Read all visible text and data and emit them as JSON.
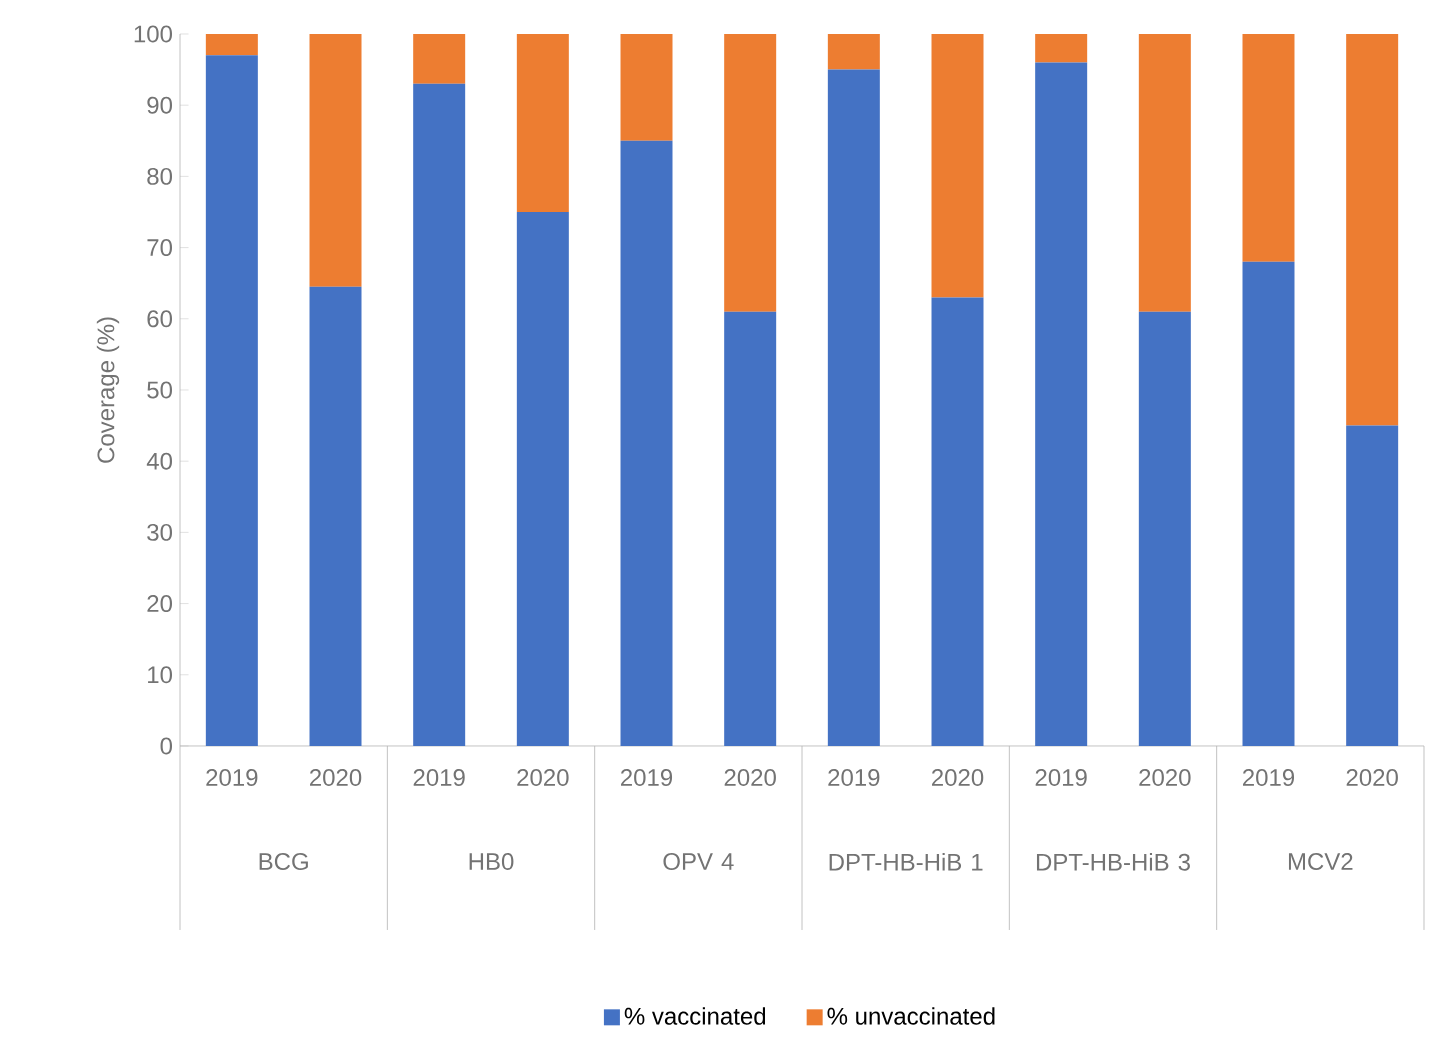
{
  "chart_data": {
    "type": "bar",
    "stacked": true,
    "ylabel": "Coverage (%)",
    "categories": [
      "2019",
      "2020",
      "2019",
      "2020",
      "2019",
      "2020",
      "2019",
      "2020",
      "2019",
      "2020",
      "2019",
      "2020"
    ],
    "annotations": [
      "BCG",
      "HB0",
      "OPV 4",
      "DPT-HB-HiB 1",
      "DPT-HB-HiB 3",
      "MCV2"
    ],
    "series": [
      {
        "name": "% vaccinated",
        "color": "#4472c4",
        "values": [
          97,
          64.5,
          93,
          75,
          85,
          61,
          95,
          63,
          96,
          61,
          68,
          45
        ]
      },
      {
        "name": "% unvaccinated",
        "color": "#ed7d31",
        "values": [
          3,
          35.5,
          7,
          25,
          15,
          39,
          5,
          37,
          4,
          39,
          32,
          55
        ]
      }
    ],
    "ylim": [
      0,
      100
    ],
    "yticks": [
      0,
      10,
      20,
      30,
      40,
      50,
      60,
      70,
      80,
      90,
      100
    ],
    "legend": "bottom"
  }
}
